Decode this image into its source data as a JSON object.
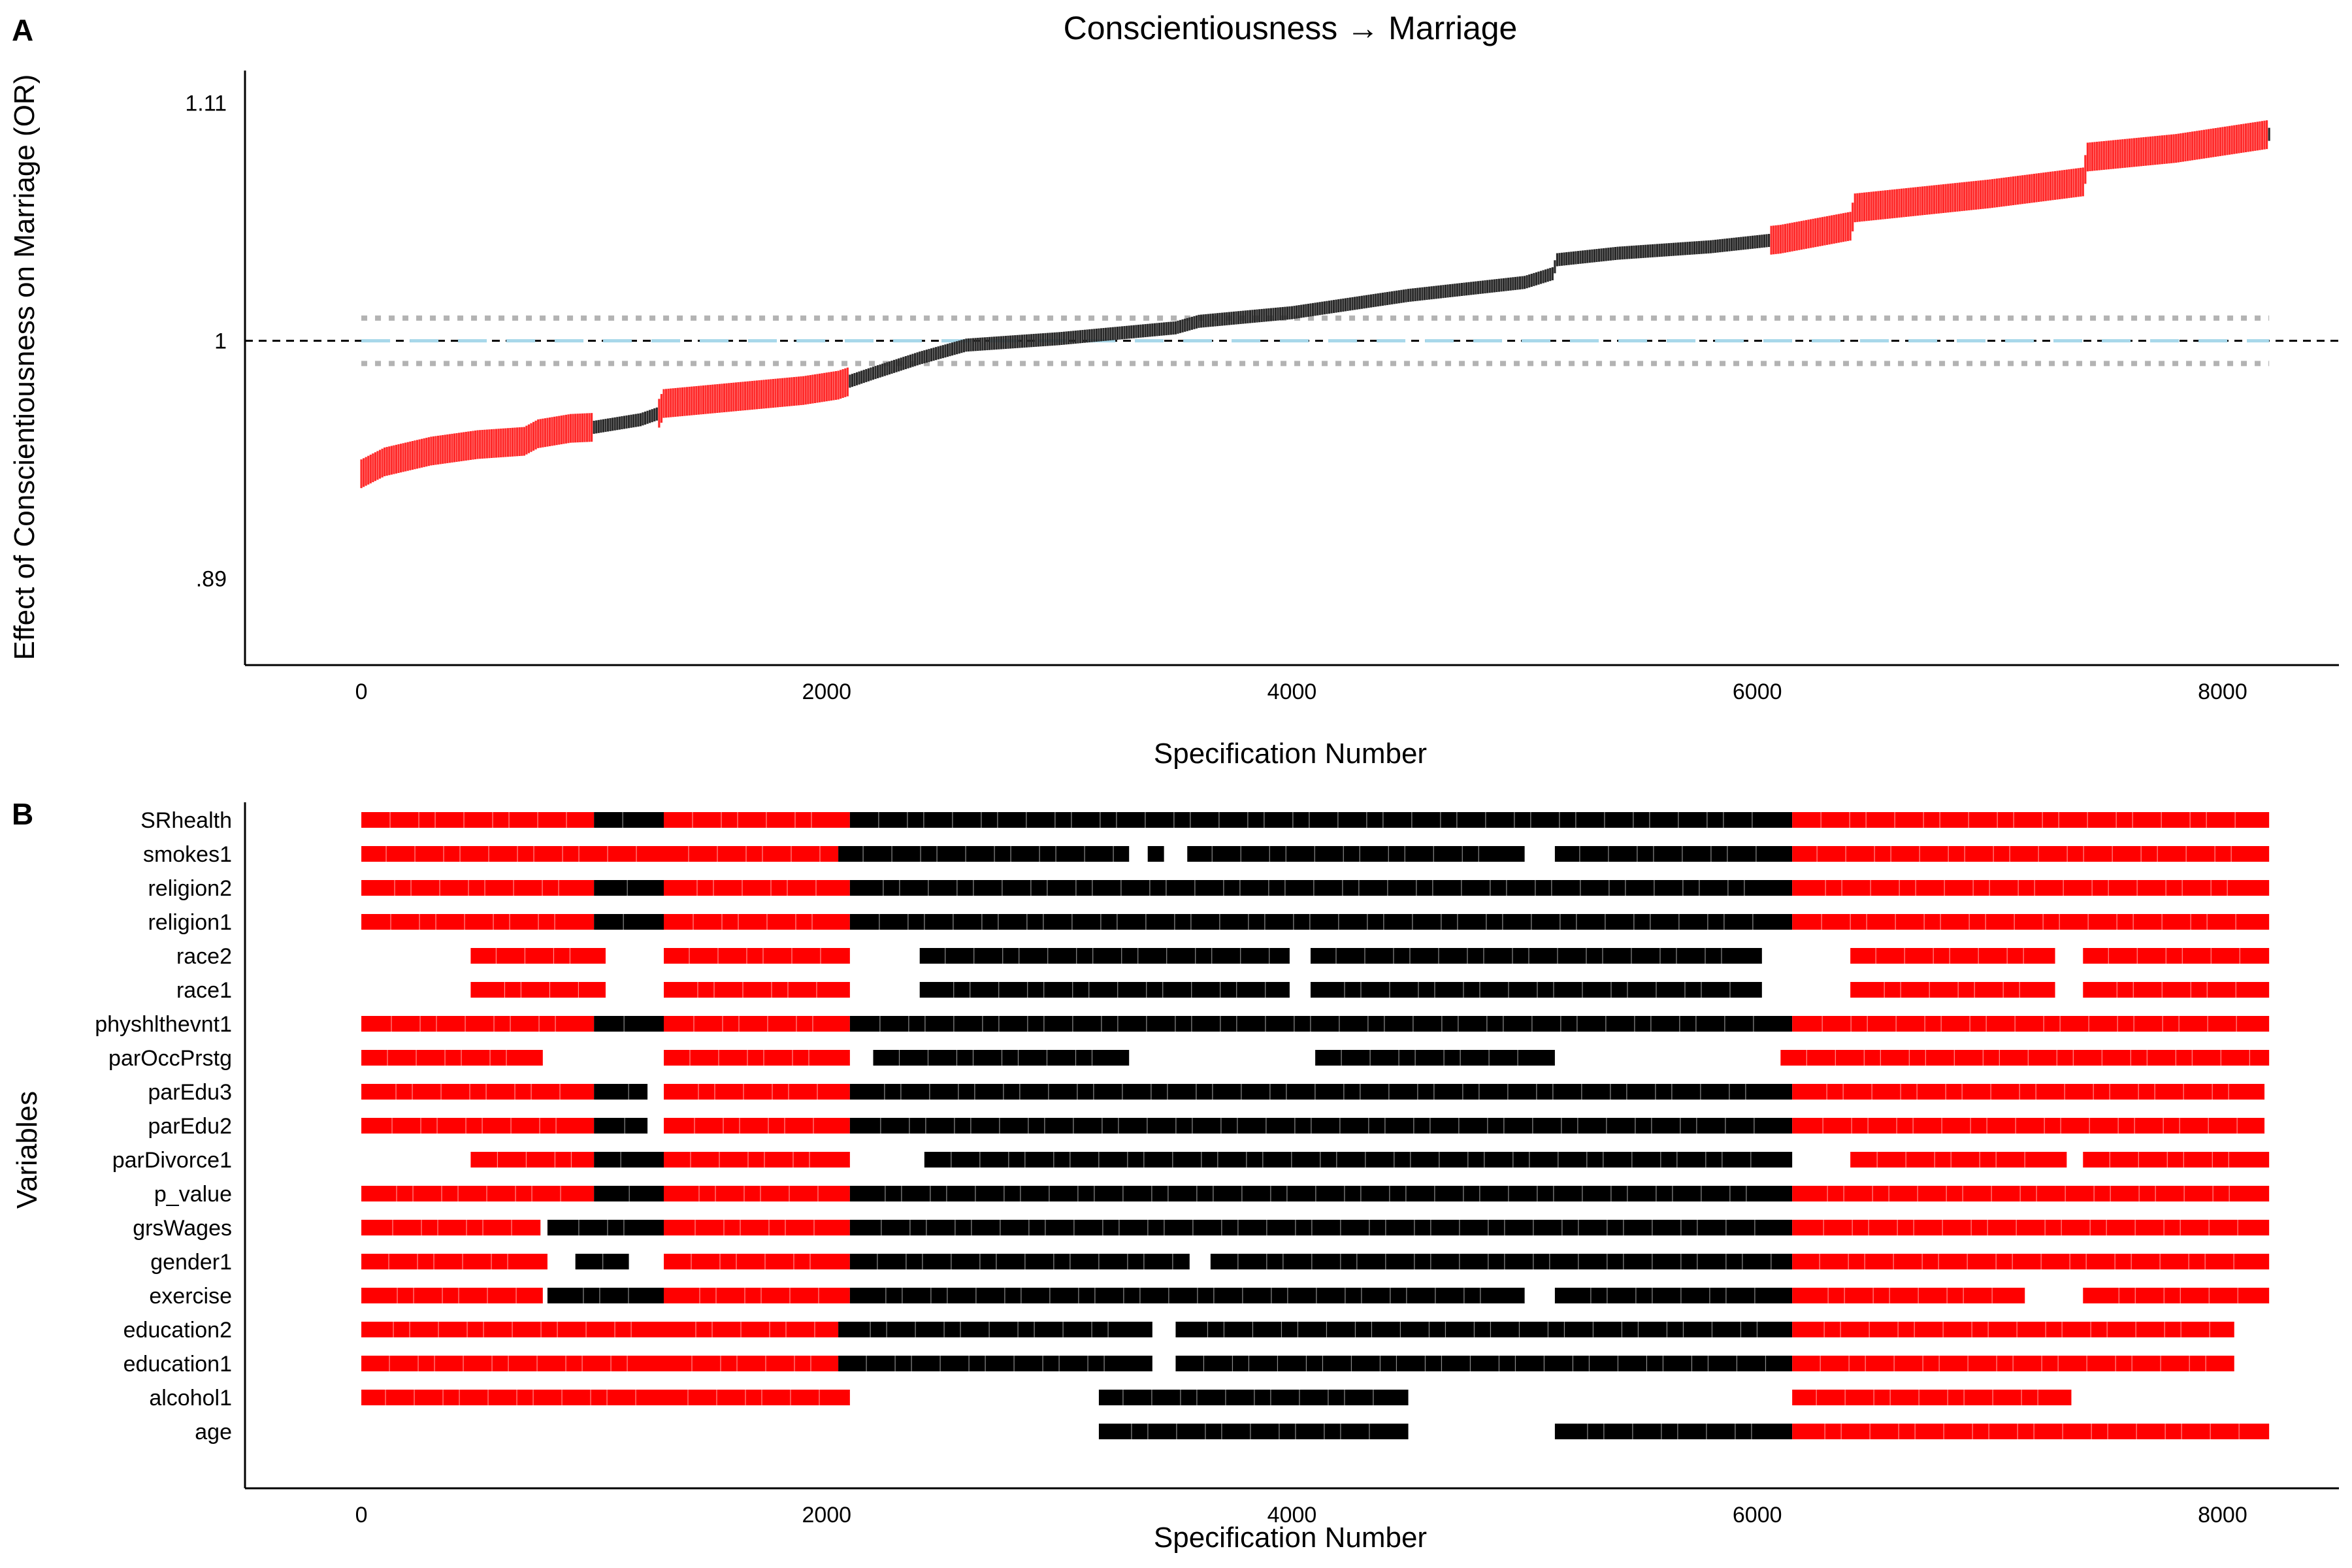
{
  "chart_data": [
    {
      "panel": "A",
      "type": "line",
      "title": "Conscientiousness → Marriage",
      "xlabel": "Specification Number",
      "ylabel": "Effect of Conscientiousness on Marriage (OR)",
      "xlim": [
        -500,
        8500
      ],
      "ylim": [
        0.85,
        1.125
      ],
      "x_ticks": [
        0,
        2000,
        4000,
        6000,
        8000
      ],
      "y_ticks": [
        0.89,
        1,
        1.11
      ],
      "y_tick_labels": [
        ".89",
        "1",
        "1.11"
      ],
      "reference_line": 1,
      "grid": false,
      "series": [
        {
          "role": "estimate",
          "x": [
            0,
            100,
            300,
            500,
            700,
            760,
            900,
            1000,
            1200,
            1280,
            1300,
            1600,
            1900,
            2050,
            2200,
            2400,
            2600,
            3000,
            3500,
            3600,
            4000,
            4500,
            5000,
            5120,
            5140,
            5400,
            5800,
            6100,
            6300,
            6400,
            6420,
            7000,
            7400,
            7420,
            7800,
            8200
          ],
          "y": [
            0.9385,
            0.944,
            0.949,
            0.952,
            0.9535,
            0.957,
            0.9595,
            0.96,
            0.9635,
            0.9665,
            0.971,
            0.974,
            0.977,
            0.9795,
            0.985,
            0.992,
            0.998,
            1.001,
            1.006,
            1.009,
            1.013,
            1.021,
            1.027,
            1.031,
            1.0375,
            1.0405,
            1.0435,
            1.047,
            1.051,
            1.053,
            1.0615,
            1.068,
            1.0735,
            1.085,
            1.089,
            1.0955
          ],
          "significant_color": "#ff2a2a",
          "non_significant_color": "#2a2a2a",
          "significant_ranges": [
            [
              0,
              1000
            ],
            [
              1280,
              2100
            ],
            [
              6060,
              8200
            ]
          ]
        },
        {
          "role": "null_median",
          "x": [
            0,
            8200
          ],
          "y": [
            1.0,
            1.0
          ],
          "color": "#a8d8ea",
          "style": "dashed"
        },
        {
          "role": "null_upper",
          "x": [
            0,
            8200
          ],
          "y": [
            1.0105,
            1.0105
          ],
          "color": "#b3b3b3",
          "style": "dotted"
        },
        {
          "role": "null_lower",
          "x": [
            0,
            8200
          ],
          "y": [
            0.9895,
            0.9895
          ],
          "color": "#b3b3b3",
          "style": "dotted"
        }
      ]
    },
    {
      "panel": "B",
      "type": "heatmap",
      "xlabel": "Specification Number",
      "ylabel": "Variables",
      "xlim": [
        -500,
        8500
      ],
      "x_ticks": [
        0,
        2000,
        4000,
        6000,
        8000
      ],
      "grid": false,
      "colors": {
        "r": "#ff0000",
        "k": "#000000"
      },
      "rows": [
        {
          "label": "SRhealth",
          "segments": [
            [
              0,
              1000,
              "r"
            ],
            [
              1000,
              1300,
              "k"
            ],
            [
              1300,
              2100,
              "r"
            ],
            [
              2100,
              6150,
              "k"
            ],
            [
              6150,
              8200,
              "r"
            ]
          ]
        },
        {
          "label": "smokes1",
          "segments": [
            [
              0,
              1300,
              "r"
            ],
            [
              1300,
              2050,
              "r"
            ],
            [
              2050,
              3300,
              "k"
            ],
            [
              3380,
              3450,
              "k"
            ],
            [
              3550,
              5000,
              "k"
            ],
            [
              5130,
              6150,
              "k"
            ],
            [
              6150,
              8200,
              "r"
            ]
          ]
        },
        {
          "label": "religion2",
          "segments": [
            [
              0,
              1000,
              "r"
            ],
            [
              1000,
              1300,
              "k"
            ],
            [
              1300,
              2100,
              "r"
            ],
            [
              2100,
              6150,
              "k"
            ],
            [
              6150,
              8200,
              "r"
            ]
          ]
        },
        {
          "label": "religion1",
          "segments": [
            [
              0,
              1000,
              "r"
            ],
            [
              1000,
              1300,
              "k"
            ],
            [
              1300,
              2100,
              "r"
            ],
            [
              2100,
              6150,
              "k"
            ],
            [
              6150,
              8200,
              "r"
            ]
          ]
        },
        {
          "label": "race2",
          "segments": [
            [
              470,
              1050,
              "r"
            ],
            [
              1300,
              2100,
              "r"
            ],
            [
              2400,
              3990,
              "k"
            ],
            [
              4080,
              6020,
              "k"
            ],
            [
              6400,
              7280,
              "r"
            ],
            [
              7400,
              8200,
              "r"
            ]
          ]
        },
        {
          "label": "race1",
          "segments": [
            [
              470,
              1050,
              "r"
            ],
            [
              1300,
              2100,
              "r"
            ],
            [
              2400,
              3990,
              "k"
            ],
            [
              4080,
              6020,
              "k"
            ],
            [
              6400,
              7280,
              "r"
            ],
            [
              7400,
              8200,
              "r"
            ]
          ]
        },
        {
          "label": "physhlthevnt1",
          "segments": [
            [
              0,
              1000,
              "r"
            ],
            [
              1000,
              1300,
              "k"
            ],
            [
              1300,
              2100,
              "r"
            ],
            [
              2100,
              6150,
              "k"
            ],
            [
              6150,
              8200,
              "r"
            ]
          ]
        },
        {
          "label": "parOccPrstg",
          "segments": [
            [
              0,
              780,
              "r"
            ],
            [
              1300,
              2100,
              "r"
            ],
            [
              2200,
              3300,
              "k"
            ],
            [
              4100,
              5130,
              "k"
            ],
            [
              6100,
              8200,
              "r"
            ]
          ]
        },
        {
          "label": "parEdu3",
          "segments": [
            [
              0,
              1000,
              "r"
            ],
            [
              1000,
              1230,
              "k"
            ],
            [
              1300,
              2100,
              "r"
            ],
            [
              2100,
              6150,
              "k"
            ],
            [
              6150,
              8180,
              "r"
            ]
          ]
        },
        {
          "label": "parEdu2",
          "segments": [
            [
              0,
              1000,
              "r"
            ],
            [
              1000,
              1230,
              "k"
            ],
            [
              1300,
              2100,
              "r"
            ],
            [
              2100,
              6150,
              "k"
            ],
            [
              6150,
              8180,
              "r"
            ]
          ]
        },
        {
          "label": "parDivorce1",
          "segments": [
            [
              470,
              1000,
              "r"
            ],
            [
              1000,
              1300,
              "k"
            ],
            [
              1300,
              2100,
              "r"
            ],
            [
              2420,
              6150,
              "k"
            ],
            [
              6400,
              7330,
              "r"
            ],
            [
              7400,
              8200,
              "r"
            ]
          ]
        },
        {
          "label": "p_value",
          "segments": [
            [
              0,
              1000,
              "r"
            ],
            [
              1000,
              1300,
              "k"
            ],
            [
              1300,
              2100,
              "r"
            ],
            [
              2100,
              6150,
              "k"
            ],
            [
              6150,
              8200,
              "r"
            ]
          ]
        },
        {
          "label": "grsWages",
          "segments": [
            [
              0,
              770,
              "r"
            ],
            [
              800,
              1300,
              "k"
            ],
            [
              1300,
              2100,
              "r"
            ],
            [
              2100,
              6150,
              "k"
            ],
            [
              6150,
              8200,
              "r"
            ]
          ]
        },
        {
          "label": "gender1",
          "segments": [
            [
              0,
              800,
              "r"
            ],
            [
              920,
              1150,
              "k"
            ],
            [
              1300,
              2100,
              "r"
            ],
            [
              2100,
              3560,
              "k"
            ],
            [
              3650,
              6150,
              "k"
            ],
            [
              6150,
              8200,
              "r"
            ]
          ]
        },
        {
          "label": "exercise",
          "segments": [
            [
              0,
              780,
              "r"
            ],
            [
              800,
              1300,
              "k"
            ],
            [
              1300,
              2100,
              "r"
            ],
            [
              2100,
              5000,
              "k"
            ],
            [
              5130,
              6150,
              "k"
            ],
            [
              6150,
              7150,
              "r"
            ],
            [
              7400,
              8200,
              "r"
            ]
          ]
        },
        {
          "label": "education2",
          "segments": [
            [
              0,
              1300,
              "r"
            ],
            [
              1300,
              2050,
              "r"
            ],
            [
              2050,
              3400,
              "k"
            ],
            [
              3500,
              6150,
              "k"
            ],
            [
              6150,
              8050,
              "r"
            ]
          ]
        },
        {
          "label": "education1",
          "segments": [
            [
              0,
              1300,
              "r"
            ],
            [
              1300,
              2050,
              "r"
            ],
            [
              2050,
              3400,
              "k"
            ],
            [
              3500,
              6150,
              "k"
            ],
            [
              6150,
              8050,
              "r"
            ]
          ]
        },
        {
          "label": "alcohol1",
          "segments": [
            [
              0,
              1300,
              "r"
            ],
            [
              1300,
              2100,
              "r"
            ],
            [
              3170,
              4500,
              "k"
            ],
            [
              6150,
              7350,
              "r"
            ]
          ]
        },
        {
          "label": "age",
          "segments": [
            [
              3170,
              4500,
              "k"
            ],
            [
              5130,
              6150,
              "k"
            ],
            [
              6150,
              8200,
              "r"
            ]
          ]
        }
      ]
    }
  ],
  "panels": {
    "a_letter": "A",
    "b_letter": "B"
  }
}
